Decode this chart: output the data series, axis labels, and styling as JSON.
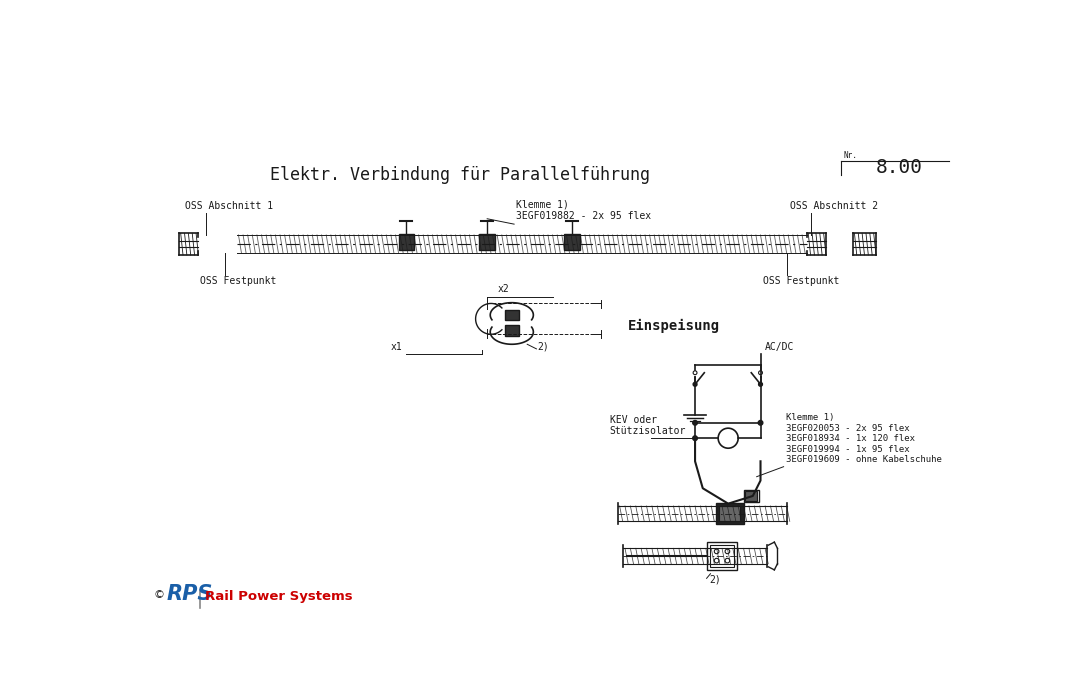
{
  "title": "Elektr. Verbindung für Parallelführung",
  "nr_label": "Nr.",
  "nr_value": "8.00",
  "bg_color": "#ffffff",
  "text_color": "#1a1a1a",
  "logo_rps_blue": "#1a5fa8",
  "logo_rail_color": "#cc0000",
  "copyright_text": "©",
  "logo_text": "RPS",
  "subtitle_text": "Rail Power Systems",
  "ann_oss1": "OSS Abschnitt 1",
  "ann_oss2": "OSS Abschnitt 2",
  "ann_fest1": "OSS Festpunkt",
  "ann_fest2": "OSS Festpunkt",
  "ann_klemme_top": "Klemme 1)\n3EGF019882 - 2x 95 flex",
  "ann_x1": "x1",
  "ann_x2": "x2",
  "ann_2_detail": "2)",
  "ann_einspeisung": "Einspeisung",
  "ann_acdc": "AC/DC",
  "ann_kev": "KEV oder\nStützisolator",
  "ann_klemme_bot": "Klemme 1)\n3EGF020053 - 2x 95 flex\n3EGF018934 - 1x 120 flex\n3EGF019994 - 1x 95 flex\n3EGF019609 - ohne Kabelschuhe",
  "ann_2_bot": "2)"
}
